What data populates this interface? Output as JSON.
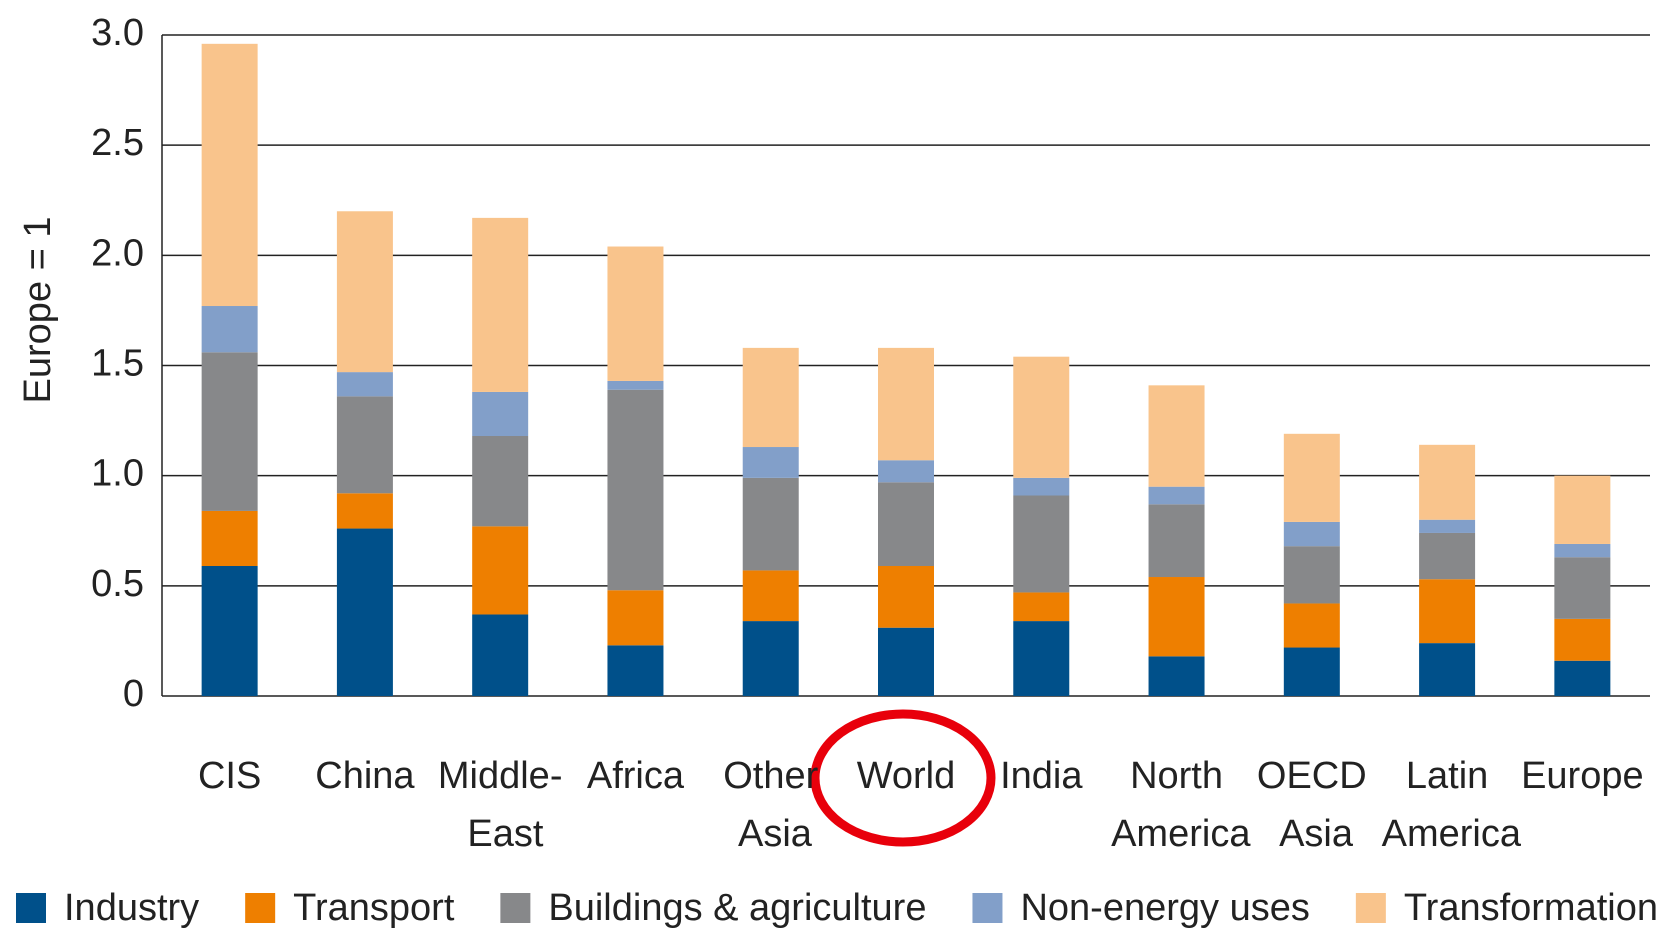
{
  "chart_data": {
    "type": "stacked_bar",
    "y_label": "Europe = 1",
    "categories": [
      "CIS",
      "China",
      "Middle- East",
      "Africa",
      "Other Asia",
      "World",
      "India",
      "North America",
      "OECD Asia",
      "Latin America",
      "Europe"
    ],
    "series": [
      {
        "name": "Industry",
        "color": "#00508a",
        "values": [
          0.59,
          0.76,
          0.37,
          0.23,
          0.34,
          0.31,
          0.34,
          0.18,
          0.22,
          0.24,
          0.16
        ]
      },
      {
        "name": "Transport",
        "color": "#ee7f00",
        "values": [
          0.25,
          0.16,
          0.4,
          0.25,
          0.23,
          0.28,
          0.13,
          0.36,
          0.2,
          0.29,
          0.19
        ]
      },
      {
        "name": "Buildings & agriculture",
        "color": "#87888a",
        "values": [
          0.72,
          0.44,
          0.41,
          0.91,
          0.42,
          0.38,
          0.44,
          0.33,
          0.26,
          0.21,
          0.28
        ]
      },
      {
        "name": "Non-energy uses",
        "color": "#829fc9",
        "values": [
          0.21,
          0.11,
          0.2,
          0.04,
          0.14,
          0.1,
          0.08,
          0.08,
          0.11,
          0.06,
          0.06
        ]
      },
      {
        "name": "Transformation",
        "color": "#f9c48c",
        "values": [
          1.19,
          0.73,
          0.79,
          0.61,
          0.45,
          0.51,
          0.55,
          0.46,
          0.4,
          0.34,
          0.31
        ]
      }
    ],
    "ylim": [
      0,
      3.0
    ],
    "yticks": [
      0,
      0.5,
      {
        "value": 1.0,
        "label": "1.0"
      },
      1.5,
      {
        "value": 2.0,
        "label": "2.0"
      },
      2.5,
      {
        "value": 3.0,
        "label": "3.0"
      }
    ],
    "grid": true,
    "legend": "bottom"
  }
}
